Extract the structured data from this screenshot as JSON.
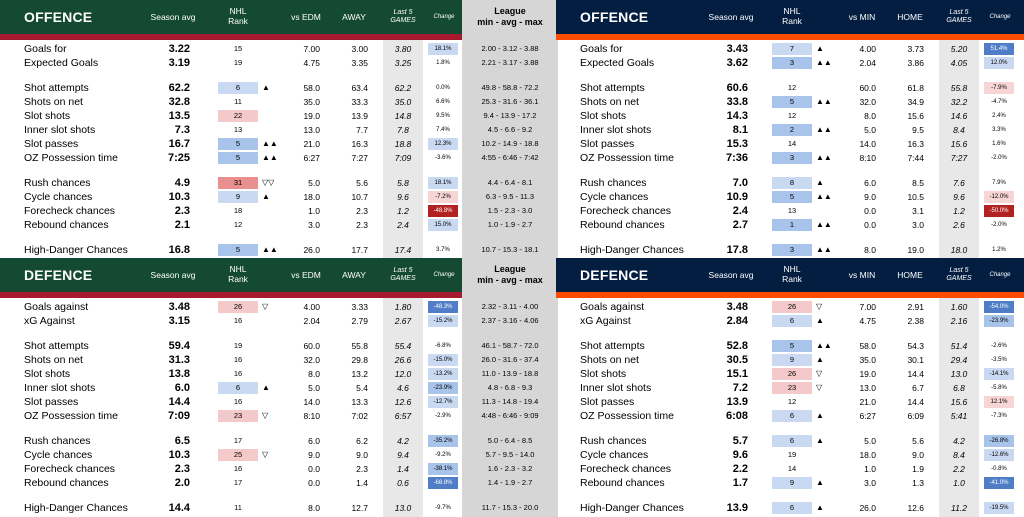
{
  "header_cols": {
    "season_avg": "Season avg",
    "nhl_rank": "NHL\nRank",
    "last5": "Last 5\nGAMES",
    "change": "Change",
    "league": "League\nmin - avg - max"
  },
  "colors": {
    "wild_green": "#144a31",
    "wild_red": "#a6192e",
    "opp_navy": "#041e42",
    "opp_orange": "#fc4c02",
    "good_blue": "#a9c4eb",
    "bad_red": "#f4b9b9",
    "strong_red": "#b22222",
    "strong_blue": "#4f7ec7"
  },
  "panels": [
    {
      "id": "wild-offence",
      "title": "OFFENCE",
      "vs_label": "vs EDM",
      "loc_label": "AWAY",
      "show_league": true,
      "rows": [
        {
          "label": "Goals for",
          "avg": "3.22",
          "rank": "15",
          "arrows": "",
          "v1": "7.00",
          "v2": "3.00",
          "l5": "3.80",
          "chg": "18.1%",
          "league": "2.00 - 3.12 - 3.88",
          "rc": "none",
          "cc": "b1"
        },
        {
          "label": "Expected Goals",
          "avg": "3.19",
          "rank": "19",
          "arrows": "",
          "v1": "4.75",
          "v2": "3.35",
          "l5": "3.25",
          "chg": "1.8%",
          "league": "2.21 - 3.17 - 3.88",
          "rc": "none",
          "cc": "none"
        },
        {
          "label": "Shot attempts",
          "avg": "62.2",
          "rank": "6",
          "arrows": "▲",
          "v1": "58.0",
          "v2": "63.4",
          "l5": "62.2",
          "chg": "0.0%",
          "league": "49.8 - 58.8 - 72.2",
          "rc": "b",
          "cc": "none"
        },
        {
          "label": "Shots on net",
          "avg": "32.8",
          "rank": "11",
          "arrows": "",
          "v1": "35.0",
          "v2": "33.3",
          "l5": "35.0",
          "chg": "6.6%",
          "league": "25.3 - 31.6 - 36.1",
          "rc": "none",
          "cc": "none"
        },
        {
          "label": "Slot shots",
          "avg": "13.5",
          "rank": "22",
          "arrows": "",
          "v1": "19.0",
          "v2": "13.9",
          "l5": "14.8",
          "chg": "9.5%",
          "league": "9.4 - 13.9 - 17.2",
          "rc": "r",
          "cc": "none"
        },
        {
          "label": "Inner slot shots",
          "avg": "7.3",
          "rank": "13",
          "arrows": "",
          "v1": "13.0",
          "v2": "7.7",
          "l5": "7.8",
          "chg": "7.4%",
          "league": "4.5 - 6.6 - 9.2",
          "rc": "none",
          "cc": "none"
        },
        {
          "label": "Slot passes",
          "avg": "16.7",
          "rank": "5",
          "arrows": "▲▲",
          "v1": "21.0",
          "v2": "16.3",
          "l5": "18.8",
          "chg": "12.3%",
          "league": "10.2 - 14.9 - 18.8",
          "rc": "b2",
          "cc": "b1"
        },
        {
          "label": "OZ Possession time",
          "avg": "7:25",
          "rank": "5",
          "arrows": "▲▲",
          "v1": "6:27",
          "v2": "7:27",
          "l5": "7:09",
          "chg": "-3.6%",
          "league": "4:55 - 6:46 - 7:42",
          "rc": "b2",
          "cc": "none"
        },
        {
          "label": "Rush chances",
          "avg": "4.9",
          "rank": "31",
          "arrows": "▽▽",
          "v1": "5.0",
          "v2": "5.6",
          "l5": "5.8",
          "chg": "18.1%",
          "league": "4.4 - 6.4 - 8.1",
          "rc": "r2",
          "cc": "b1"
        },
        {
          "label": "Cycle chances",
          "avg": "10.3",
          "rank": "9",
          "arrows": "▲",
          "v1": "18.0",
          "v2": "10.7",
          "l5": "9.6",
          "chg": "-7.2%",
          "league": "6.3 - 9.5 - 11.3",
          "rc": "b",
          "cc": "r1"
        },
        {
          "label": "Forecheck chances",
          "avg": "2.3",
          "rank": "18",
          "arrows": "",
          "v1": "1.0",
          "v2": "2.3",
          "l5": "1.2",
          "chg": "-48.8%",
          "league": "1.5 - 2.3 - 3.0",
          "rc": "none",
          "cc": "r3"
        },
        {
          "label": "Rebound chances",
          "avg": "2.1",
          "rank": "12",
          "arrows": "",
          "v1": "3.0",
          "v2": "2.3",
          "l5": "2.4",
          "chg": "15.0%",
          "league": "1.0 - 1.9 - 2.7",
          "rc": "none",
          "cc": "b1"
        },
        {
          "label": "High-Danger Chances",
          "avg": "16.8",
          "rank": "5",
          "arrows": "▲▲",
          "v1": "26.0",
          "v2": "17.7",
          "l5": "17.4",
          "chg": "3.7%",
          "league": "10.7 - 15.3 - 18.1",
          "rc": "b2",
          "cc": "none"
        }
      ]
    },
    {
      "id": "opp-offence",
      "title": "OFFENCE",
      "vs_label": "vs MIN",
      "loc_label": "HOME",
      "show_league": false,
      "rows": [
        {
          "label": "Goals for",
          "avg": "3.43",
          "rank": "7",
          "arrows": "▲",
          "v1": "4.00",
          "v2": "3.73",
          "l5": "5.20",
          "chg": "51.4%",
          "league": "",
          "rc": "b",
          "cc": "b3"
        },
        {
          "label": "Expected Goals",
          "avg": "3.62",
          "rank": "3",
          "arrows": "▲▲",
          "v1": "2.04",
          "v2": "3.86",
          "l5": "4.05",
          "chg": "12.0%",
          "league": "",
          "rc": "b2",
          "cc": "b1"
        },
        {
          "label": "Shot attempts",
          "avg": "60.6",
          "rank": "12",
          "arrows": "",
          "v1": "60.0",
          "v2": "61.8",
          "l5": "55.8",
          "chg": "-7.9%",
          "league": "",
          "rc": "none",
          "cc": "r1"
        },
        {
          "label": "Shots on net",
          "avg": "33.8",
          "rank": "5",
          "arrows": "▲▲",
          "v1": "32.0",
          "v2": "34.9",
          "l5": "32.2",
          "chg": "-4.7%",
          "league": "",
          "rc": "b2",
          "cc": "none"
        },
        {
          "label": "Slot shots",
          "avg": "14.3",
          "rank": "12",
          "arrows": "",
          "v1": "8.0",
          "v2": "15.6",
          "l5": "14.6",
          "chg": "2.4%",
          "league": "",
          "rc": "none",
          "cc": "none"
        },
        {
          "label": "Inner slot shots",
          "avg": "8.1",
          "rank": "2",
          "arrows": "▲▲",
          "v1": "5.0",
          "v2": "9.5",
          "l5": "8.4",
          "chg": "3.3%",
          "league": "",
          "rc": "b2",
          "cc": "none"
        },
        {
          "label": "Slot passes",
          "avg": "15.3",
          "rank": "14",
          "arrows": "",
          "v1": "14.0",
          "v2": "16.3",
          "l5": "15.6",
          "chg": "1.6%",
          "league": "",
          "rc": "none",
          "cc": "none"
        },
        {
          "label": "OZ Possession time",
          "avg": "7:36",
          "rank": "3",
          "arrows": "▲▲",
          "v1": "8:10",
          "v2": "7:44",
          "l5": "7:27",
          "chg": "-2.0%",
          "league": "",
          "rc": "b2",
          "cc": "none"
        },
        {
          "label": "Rush chances",
          "avg": "7.0",
          "rank": "8",
          "arrows": "▲",
          "v1": "6.0",
          "v2": "8.5",
          "l5": "7.6",
          "chg": "7.9%",
          "league": "",
          "rc": "b",
          "cc": "none"
        },
        {
          "label": "Cycle chances",
          "avg": "10.9",
          "rank": "5",
          "arrows": "▲▲",
          "v1": "9.0",
          "v2": "10.5",
          "l5": "9.6",
          "chg": "-12.0%",
          "league": "",
          "rc": "b2",
          "cc": "r1"
        },
        {
          "label": "Forecheck chances",
          "avg": "2.4",
          "rank": "13",
          "arrows": "",
          "v1": "0.0",
          "v2": "3.1",
          "l5": "1.2",
          "chg": "-50.0%",
          "league": "",
          "rc": "none",
          "cc": "r3"
        },
        {
          "label": "Rebound chances",
          "avg": "2.7",
          "rank": "1",
          "arrows": "▲▲",
          "v1": "0.0",
          "v2": "3.0",
          "l5": "2.6",
          "chg": "-2.0%",
          "league": "",
          "rc": "b2",
          "cc": "none"
        },
        {
          "label": "High-Danger Chances",
          "avg": "17.8",
          "rank": "3",
          "arrows": "▲▲",
          "v1": "8.0",
          "v2": "19.0",
          "l5": "18.0",
          "chg": "1.2%",
          "league": "",
          "rc": "b2",
          "cc": "none"
        }
      ]
    },
    {
      "id": "wild-defence",
      "title": "DEFENCE",
      "vs_label": "vs EDM",
      "loc_label": "AWAY",
      "show_league": true,
      "rows": [
        {
          "label": "Goals against",
          "avg": "3.48",
          "rank": "26",
          "arrows": "▽",
          "v1": "4.00",
          "v2": "3.33",
          "l5": "1.80",
          "chg": "-48.3%",
          "league": "2.32 - 3.11 - 4.00",
          "rc": "r",
          "cc": "b3"
        },
        {
          "label": "xG Against",
          "avg": "3.15",
          "rank": "16",
          "arrows": "",
          "v1": "2.04",
          "v2": "2.79",
          "l5": "2.67",
          "chg": "-15.2%",
          "league": "2.37 - 3.16 - 4.06",
          "rc": "none",
          "cc": "b1"
        },
        {
          "label": "Shot attempts",
          "avg": "59.4",
          "rank": "19",
          "arrows": "",
          "v1": "60.0",
          "v2": "55.8",
          "l5": "55.4",
          "chg": "-6.8%",
          "league": "46.1 - 58.7 - 72.0",
          "rc": "none",
          "cc": "none"
        },
        {
          "label": "Shots on net",
          "avg": "31.3",
          "rank": "16",
          "arrows": "",
          "v1": "32.0",
          "v2": "29.8",
          "l5": "26.6",
          "chg": "-15.0%",
          "league": "26.0 - 31.6 - 37.4",
          "rc": "none",
          "cc": "b1"
        },
        {
          "label": "Slot shots",
          "avg": "13.8",
          "rank": "16",
          "arrows": "",
          "v1": "8.0",
          "v2": "13.2",
          "l5": "12.0",
          "chg": "-13.2%",
          "league": "11.0 - 13.9 - 18.8",
          "rc": "none",
          "cc": "b1"
        },
        {
          "label": "Inner slot shots",
          "avg": "6.0",
          "rank": "6",
          "arrows": "▲",
          "v1": "5.0",
          "v2": "5.4",
          "l5": "4.6",
          "chg": "-23.9%",
          "league": "4.8 - 6.8 - 9.3",
          "rc": "b",
          "cc": "b2"
        },
        {
          "label": "Slot passes",
          "avg": "14.4",
          "rank": "16",
          "arrows": "",
          "v1": "14.0",
          "v2": "13.3",
          "l5": "12.6",
          "chg": "-12.7%",
          "league": "11.3 - 14.8 - 19.4",
          "rc": "none",
          "cc": "b1"
        },
        {
          "label": "OZ Possession time",
          "avg": "7:09",
          "rank": "23",
          "arrows": "▽",
          "v1": "8:10",
          "v2": "7:02",
          "l5": "6:57",
          "chg": "-2.9%",
          "league": "4:48 - 6:46 - 9:09",
          "rc": "r",
          "cc": "none"
        },
        {
          "label": "Rush chances",
          "avg": "6.5",
          "rank": "17",
          "arrows": "",
          "v1": "6.0",
          "v2": "6.2",
          "l5": "4.2",
          "chg": "-35.2%",
          "league": "5.0 - 6.4 - 8.5",
          "rc": "none",
          "cc": "b2"
        },
        {
          "label": "Cycle chances",
          "avg": "10.3",
          "rank": "25",
          "arrows": "▽",
          "v1": "9.0",
          "v2": "9.0",
          "l5": "9.4",
          "chg": "-9.2%",
          "league": "5.7 - 9.5 - 14.0",
          "rc": "r",
          "cc": "none"
        },
        {
          "label": "Forecheck chances",
          "avg": "2.3",
          "rank": "16",
          "arrows": "",
          "v1": "0.0",
          "v2": "2.3",
          "l5": "1.4",
          "chg": "-38.1%",
          "league": "1.6 - 2.3 - 3.2",
          "rc": "none",
          "cc": "b2"
        },
        {
          "label": "Rebound chances",
          "avg": "2.0",
          "rank": "17",
          "arrows": "",
          "v1": "0.0",
          "v2": "1.4",
          "l5": "0.6",
          "chg": "-68.8%",
          "league": "1.4 - 1.9 - 2.7",
          "rc": "none",
          "cc": "b3"
        },
        {
          "label": "High-Danger Chances",
          "avg": "14.4",
          "rank": "11",
          "arrows": "",
          "v1": "8.0",
          "v2": "12.7",
          "l5": "13.0",
          "chg": "-9.7%",
          "league": "11.7 - 15.3 - 20.0",
          "rc": "none",
          "cc": "none"
        }
      ]
    },
    {
      "id": "opp-defence",
      "title": "DEFENCE",
      "vs_label": "vs MIN",
      "loc_label": "HOME",
      "show_league": false,
      "rows": [
        {
          "label": "Goals against",
          "avg": "3.48",
          "rank": "26",
          "arrows": "▽",
          "v1": "7.00",
          "v2": "2.91",
          "l5": "1.60",
          "chg": "-54.0%",
          "league": "",
          "rc": "r",
          "cc": "b3"
        },
        {
          "label": "xG Against",
          "avg": "2.84",
          "rank": "6",
          "arrows": "▲",
          "v1": "4.75",
          "v2": "2.38",
          "l5": "2.16",
          "chg": "-23.9%",
          "league": "",
          "rc": "b",
          "cc": "b2"
        },
        {
          "label": "Shot attempts",
          "avg": "52.8",
          "rank": "5",
          "arrows": "▲▲",
          "v1": "58.0",
          "v2": "54.3",
          "l5": "51.4",
          "chg": "-2.6%",
          "league": "",
          "rc": "b2",
          "cc": "none"
        },
        {
          "label": "Shots on net",
          "avg": "30.5",
          "rank": "9",
          "arrows": "▲",
          "v1": "35.0",
          "v2": "30.1",
          "l5": "29.4",
          "chg": "-3.5%",
          "league": "",
          "rc": "b",
          "cc": "none"
        },
        {
          "label": "Slot shots",
          "avg": "15.1",
          "rank": "26",
          "arrows": "▽",
          "v1": "19.0",
          "v2": "14.4",
          "l5": "13.0",
          "chg": "-14.1%",
          "league": "",
          "rc": "r",
          "cc": "b1"
        },
        {
          "label": "Inner slot shots",
          "avg": "7.2",
          "rank": "23",
          "arrows": "▽",
          "v1": "13.0",
          "v2": "6.7",
          "l5": "6.8",
          "chg": "-5.8%",
          "league": "",
          "rc": "r",
          "cc": "none"
        },
        {
          "label": "Slot passes",
          "avg": "13.9",
          "rank": "12",
          "arrows": "",
          "v1": "21.0",
          "v2": "14.4",
          "l5": "15.6",
          "chg": "12.1%",
          "league": "",
          "rc": "none",
          "cc": "r1"
        },
        {
          "label": "OZ Possession time",
          "avg": "6:08",
          "rank": "6",
          "arrows": "▲",
          "v1": "6:27",
          "v2": "6:09",
          "l5": "5:41",
          "chg": "-7.3%",
          "league": "",
          "rc": "b",
          "cc": "none"
        },
        {
          "label": "Rush chances",
          "avg": "5.7",
          "rank": "6",
          "arrows": "▲",
          "v1": "5.0",
          "v2": "5.6",
          "l5": "4.2",
          "chg": "-26.8%",
          "league": "",
          "rc": "b",
          "cc": "b2"
        },
        {
          "label": "Cycle chances",
          "avg": "9.6",
          "rank": "19",
          "arrows": "",
          "v1": "18.0",
          "v2": "9.0",
          "l5": "8.4",
          "chg": "-12.6%",
          "league": "",
          "rc": "none",
          "cc": "b1"
        },
        {
          "label": "Forecheck chances",
          "avg": "2.2",
          "rank": "14",
          "arrows": "",
          "v1": "1.0",
          "v2": "1.9",
          "l5": "2.2",
          "chg": "-0.8%",
          "league": "",
          "rc": "none",
          "cc": "none"
        },
        {
          "label": "Rebound chances",
          "avg": "1.7",
          "rank": "9",
          "arrows": "▲",
          "v1": "3.0",
          "v2": "1.3",
          "l5": "1.0",
          "chg": "-41.0%",
          "league": "",
          "rc": "b",
          "cc": "b3"
        },
        {
          "label": "High-Danger Chances",
          "avg": "13.9",
          "rank": "6",
          "arrows": "▲",
          "v1": "26.0",
          "v2": "12.6",
          "l5": "11.2",
          "chg": "-19.5%",
          "league": "",
          "rc": "b",
          "cc": "b1"
        }
      ]
    }
  ]
}
